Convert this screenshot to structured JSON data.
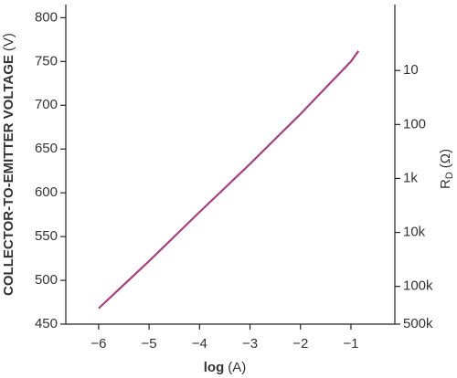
{
  "chart_data": {
    "type": "line",
    "xlabel_parts": [
      "log",
      "(A)"
    ],
    "ylabel_parts": [
      "COLLECTOR-TO-EMITTER VOLTAGE",
      "(V)"
    ],
    "y2label_parts": [
      "R",
      "D",
      "(Ω)"
    ],
    "x": [
      -6,
      -5,
      -4,
      -3,
      -2,
      -1,
      -0.85
    ],
    "series": [
      {
        "color": "#a3427e",
        "values": [
          468,
          522,
          578,
          633,
          690,
          750,
          762
        ]
      }
    ],
    "xlim": [
      -6.65,
      -0.13
    ],
    "ylim": [
      450,
      815
    ],
    "y2lim": [
      500000,
      0.6
    ],
    "y2log": true,
    "xticks": [
      {
        "value": -6,
        "label": "−6"
      },
      {
        "value": -5,
        "label": "−5"
      },
      {
        "value": -4,
        "label": "−4"
      },
      {
        "value": -3,
        "label": "−3"
      },
      {
        "value": -2,
        "label": "−2"
      },
      {
        "value": -1,
        "label": "−1"
      }
    ],
    "yticks": [
      450,
      500,
      550,
      600,
      650,
      700,
      750,
      800
    ],
    "y2ticks": [
      10,
      100,
      {
        "value": 1000,
        "label": "1k"
      },
      {
        "value": 10000,
        "label": "10k"
      },
      {
        "value": 100000,
        "label": "100k"
      },
      {
        "value": 500000,
        "label": "500k"
      }
    ],
    "grid": false
  }
}
